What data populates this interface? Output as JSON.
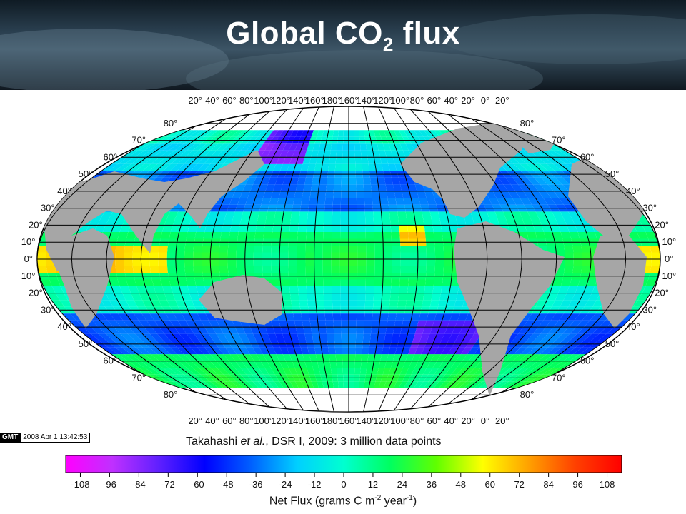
{
  "header": {
    "title_main": "Global CO",
    "title_sub": "2",
    "title_end": " flux"
  },
  "map": {
    "lon_labels": [
      "20°",
      "40°",
      "60°",
      "80°",
      "100°",
      "120°",
      "140°",
      "160°",
      "180°",
      "160°",
      "140°",
      "120°",
      "100°",
      "80°",
      "60°",
      "40°",
      "20°",
      "0°",
      "20°"
    ],
    "lat_labels_left": [
      "80°",
      "70°",
      "60°",
      "50°",
      "40°",
      "30°",
      "20°",
      "10°",
      "0°",
      "10°",
      "20°",
      "30°",
      "40°",
      "50°",
      "60°",
      "70°",
      "80°"
    ],
    "lat_labels_right": [
      "80°",
      "70°",
      "60°",
      "50°",
      "40°",
      "30°",
      "20°",
      "10°",
      "0°",
      "10°",
      "20°",
      "30°",
      "40°",
      "50°",
      "60°",
      "70°",
      "80°"
    ],
    "land_color": "#a6a6a6",
    "background_color": "#ffffff"
  },
  "gmt_stamp": {
    "logo": "GMT",
    "timestamp": "2008 Apr  1 13:42:53"
  },
  "credit": {
    "author": "Takahashi ",
    "etal": "et al.",
    "rest": ", DSR I, 2009: 3 million data points"
  },
  "colorbar": {
    "ticks": [
      "-108",
      "-96",
      "-84",
      "-72",
      "-60",
      "-48",
      "-36",
      "-24",
      "-12",
      "0",
      "12",
      "24",
      "36",
      "48",
      "60",
      "72",
      "84",
      "96",
      "108"
    ],
    "range": [
      -114,
      114
    ],
    "colors": [
      "#ff00ff",
      "#c030ff",
      "#6020ff",
      "#0000ff",
      "#0060ff",
      "#00d0ff",
      "#00ffd0",
      "#00ff60",
      "#60ff00",
      "#ffff00",
      "#ffa000",
      "#ff4000",
      "#ff0000"
    ],
    "title_main": "Net Flux (grams C m",
    "title_exp1": "-2",
    "title_mid": " year",
    "title_exp2": "-1",
    "title_end": ")"
  }
}
